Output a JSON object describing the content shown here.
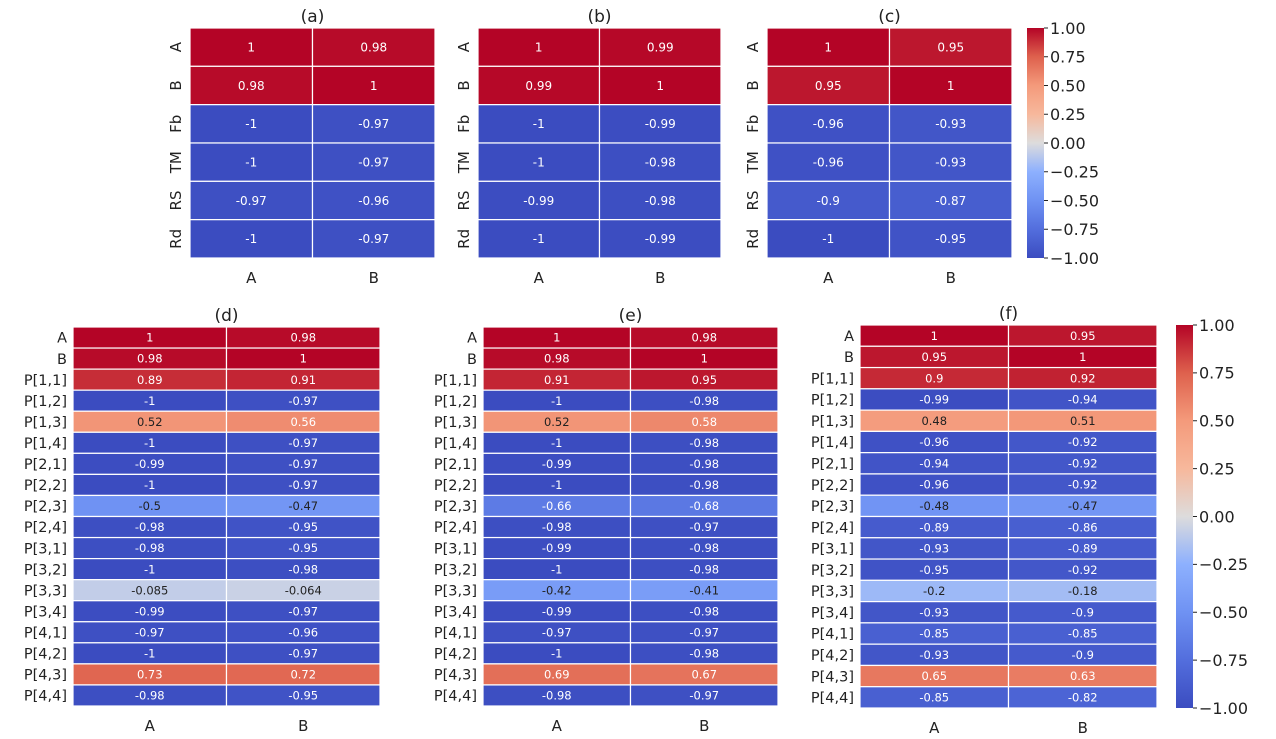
{
  "chart_data": [
    {
      "type": "heatmap",
      "title": "(a)",
      "rows": [
        "A",
        "B",
        "Fb",
        "TM",
        "RS",
        "Rd"
      ],
      "columns": [
        "A",
        "B"
      ],
      "values": [
        [
          1,
          0.98
        ],
        [
          0.98,
          1
        ],
        [
          -1,
          -0.97
        ],
        [
          -1,
          -0.97
        ],
        [
          -0.97,
          -0.96
        ],
        [
          -1,
          -0.97
        ]
      ],
      "labels": [
        [
          "1",
          "0.98"
        ],
        [
          "0.98",
          "1"
        ],
        [
          "-1",
          "-0.97"
        ],
        [
          "-1",
          "-0.97"
        ],
        [
          "-0.97",
          "-0.96"
        ],
        [
          "-1",
          "-0.97"
        ]
      ]
    },
    {
      "type": "heatmap",
      "title": "(b)",
      "rows": [
        "A",
        "B",
        "Fb",
        "TM",
        "RS",
        "Rd"
      ],
      "columns": [
        "A",
        "B"
      ],
      "values": [
        [
          1,
          0.99
        ],
        [
          0.99,
          1
        ],
        [
          -1,
          -0.99
        ],
        [
          -1,
          -0.98
        ],
        [
          -0.99,
          -0.98
        ],
        [
          -1,
          -0.99
        ]
      ],
      "labels": [
        [
          "1",
          "0.99"
        ],
        [
          "0.99",
          "1"
        ],
        [
          "-1",
          "-0.99"
        ],
        [
          "-1",
          "-0.98"
        ],
        [
          "-0.99",
          "-0.98"
        ],
        [
          "-1",
          "-0.99"
        ]
      ]
    },
    {
      "type": "heatmap",
      "title": "(c)",
      "rows": [
        "A",
        "B",
        "Fb",
        "TM",
        "RS",
        "Rd"
      ],
      "columns": [
        "A",
        "B"
      ],
      "values": [
        [
          1,
          0.95
        ],
        [
          0.95,
          1
        ],
        [
          -0.96,
          -0.93
        ],
        [
          -0.96,
          -0.93
        ],
        [
          -0.9,
          -0.87
        ],
        [
          -1,
          -0.95
        ]
      ],
      "labels": [
        [
          "1",
          "0.95"
        ],
        [
          "0.95",
          "1"
        ],
        [
          "-0.96",
          "-0.93"
        ],
        [
          "-0.96",
          "-0.93"
        ],
        [
          "-0.9",
          "-0.87"
        ],
        [
          "-1",
          "-0.95"
        ]
      ],
      "colorbar": {
        "range": [
          -1,
          1
        ],
        "ticks": [
          "1.00",
          "0.75",
          "0.50",
          "0.25",
          "0.00",
          "−0.25",
          "−0.50",
          "−0.75",
          "−1.00"
        ]
      }
    },
    {
      "type": "heatmap",
      "title": "(d)",
      "rows": [
        "A",
        "B",
        "P[1,1]",
        "P[1,2]",
        "P[1,3]",
        "P[1,4]",
        "P[2,1]",
        "P[2,2]",
        "P[2,3]",
        "P[2,4]",
        "P[3,1]",
        "P[3,2]",
        "P[3,3]",
        "P[3,4]",
        "P[4,1]",
        "P[4,2]",
        "P[4,3]",
        "P[4,4]"
      ],
      "columns": [
        "A",
        "B"
      ],
      "values": [
        [
          1,
          0.98
        ],
        [
          0.98,
          1
        ],
        [
          0.89,
          0.91
        ],
        [
          -1,
          -0.97
        ],
        [
          0.52,
          0.56
        ],
        [
          -1,
          -0.97
        ],
        [
          -0.99,
          -0.97
        ],
        [
          -1,
          -0.97
        ],
        [
          -0.5,
          -0.47
        ],
        [
          -0.98,
          -0.95
        ],
        [
          -0.98,
          -0.95
        ],
        [
          -1,
          -0.98
        ],
        [
          -0.085,
          -0.064
        ],
        [
          -0.99,
          -0.97
        ],
        [
          -0.97,
          -0.96
        ],
        [
          -1,
          -0.97
        ],
        [
          0.73,
          0.72
        ],
        [
          -0.98,
          -0.95
        ]
      ],
      "labels": [
        [
          "1",
          "0.98"
        ],
        [
          "0.98",
          "1"
        ],
        [
          "0.89",
          "0.91"
        ],
        [
          "-1",
          "-0.97"
        ],
        [
          "0.52",
          "0.56"
        ],
        [
          "-1",
          "-0.97"
        ],
        [
          "-0.99",
          "-0.97"
        ],
        [
          "-1",
          "-0.97"
        ],
        [
          "-0.5",
          "-0.47"
        ],
        [
          "-0.98",
          "-0.95"
        ],
        [
          "-0.98",
          "-0.95"
        ],
        [
          "-1",
          "-0.98"
        ],
        [
          "-0.085",
          "-0.064"
        ],
        [
          "-0.99",
          "-0.97"
        ],
        [
          "-0.97",
          "-0.96"
        ],
        [
          "-1",
          "-0.97"
        ],
        [
          "0.73",
          "0.72"
        ],
        [
          "-0.98",
          "-0.95"
        ]
      ]
    },
    {
      "type": "heatmap",
      "title": "(e)",
      "rows": [
        "A",
        "B",
        "P[1,1]",
        "P[1,2]",
        "P[1,3]",
        "P[1,4]",
        "P[2,1]",
        "P[2,2]",
        "P[2,3]",
        "P[2,4]",
        "P[3,1]",
        "P[3,2]",
        "P[3,3]",
        "P[3,4]",
        "P[4,1]",
        "P[4,2]",
        "P[4,3]",
        "P[4,4]"
      ],
      "columns": [
        "A",
        "B"
      ],
      "values": [
        [
          1,
          0.98
        ],
        [
          0.98,
          1
        ],
        [
          0.91,
          0.95
        ],
        [
          -1,
          -0.98
        ],
        [
          0.52,
          0.58
        ],
        [
          -1,
          -0.98
        ],
        [
          -0.99,
          -0.98
        ],
        [
          -1,
          -0.98
        ],
        [
          -0.66,
          -0.68
        ],
        [
          -0.98,
          -0.97
        ],
        [
          -0.99,
          -0.98
        ],
        [
          -1,
          -0.98
        ],
        [
          -0.42,
          -0.41
        ],
        [
          -0.99,
          -0.98
        ],
        [
          -0.97,
          -0.97
        ],
        [
          -1,
          -0.98
        ],
        [
          0.69,
          0.67
        ],
        [
          -0.98,
          -0.97
        ]
      ],
      "labels": [
        [
          "1",
          "0.98"
        ],
        [
          "0.98",
          "1"
        ],
        [
          "0.91",
          "0.95"
        ],
        [
          "-1",
          "-0.98"
        ],
        [
          "0.52",
          "0.58"
        ],
        [
          "-1",
          "-0.98"
        ],
        [
          "-0.99",
          "-0.98"
        ],
        [
          "-1",
          "-0.98"
        ],
        [
          "-0.66",
          "-0.68"
        ],
        [
          "-0.98",
          "-0.97"
        ],
        [
          "-0.99",
          "-0.98"
        ],
        [
          "-1",
          "-0.98"
        ],
        [
          "-0.42",
          "-0.41"
        ],
        [
          "-0.99",
          "-0.98"
        ],
        [
          "-0.97",
          "-0.97"
        ],
        [
          "-1",
          "-0.98"
        ],
        [
          "0.69",
          "0.67"
        ],
        [
          "-0.98",
          "-0.97"
        ]
      ]
    },
    {
      "type": "heatmap",
      "title": "(f)",
      "rows": [
        "A",
        "B",
        "P[1,1]",
        "P[1,2]",
        "P[1,3]",
        "P[1,4]",
        "P[2,1]",
        "P[2,2]",
        "P[2,3]",
        "P[2,4]",
        "P[3,1]",
        "P[3,2]",
        "P[3,3]",
        "P[3,4]",
        "P[4,1]",
        "P[4,2]",
        "P[4,3]",
        "P[4,4]"
      ],
      "columns": [
        "A",
        "B"
      ],
      "values": [
        [
          1,
          0.95
        ],
        [
          0.95,
          1
        ],
        [
          0.9,
          0.92
        ],
        [
          -0.99,
          -0.94
        ],
        [
          0.48,
          0.51
        ],
        [
          -0.96,
          -0.92
        ],
        [
          -0.94,
          -0.92
        ],
        [
          -0.96,
          -0.92
        ],
        [
          -0.48,
          -0.47
        ],
        [
          -0.89,
          -0.86
        ],
        [
          -0.93,
          -0.89
        ],
        [
          -0.95,
          -0.92
        ],
        [
          -0.2,
          -0.18
        ],
        [
          -0.93,
          -0.9
        ],
        [
          -0.85,
          -0.85
        ],
        [
          -0.93,
          -0.9
        ],
        [
          0.65,
          0.63
        ],
        [
          -0.85,
          -0.82
        ]
      ],
      "labels": [
        [
          "1",
          "0.95"
        ],
        [
          "0.95",
          "1"
        ],
        [
          "0.9",
          "0.92"
        ],
        [
          "-0.99",
          "-0.94"
        ],
        [
          "0.48",
          "0.51"
        ],
        [
          "-0.96",
          "-0.92"
        ],
        [
          "-0.94",
          "-0.92"
        ],
        [
          "-0.96",
          "-0.92"
        ],
        [
          "-0.48",
          "-0.47"
        ],
        [
          "-0.89",
          "-0.86"
        ],
        [
          "-0.93",
          "-0.89"
        ],
        [
          "-0.95",
          "-0.92"
        ],
        [
          "-0.2",
          "-0.18"
        ],
        [
          "-0.93",
          "-0.9"
        ],
        [
          "-0.85",
          "-0.85"
        ],
        [
          "-0.93",
          "-0.9"
        ],
        [
          "0.65",
          "0.63"
        ],
        [
          "-0.85",
          "-0.82"
        ]
      ],
      "colorbar": {
        "range": [
          -1,
          1
        ],
        "ticks": [
          "1.00",
          "0.75",
          "0.50",
          "0.25",
          "0.00",
          "−0.25",
          "−0.50",
          "−0.75",
          "−1.00"
        ]
      }
    }
  ],
  "colormap": "coolwarm"
}
